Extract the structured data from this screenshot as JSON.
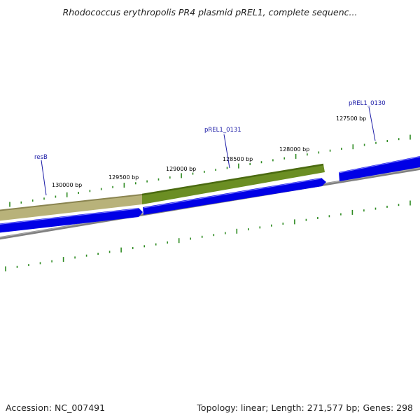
{
  "title": "Rhodococcus erythropolis PR4 plasmid pREL1, complete sequenc...",
  "footer": {
    "accession": "Accession: NC_007491",
    "summary": "Topology: linear; Length: 271,577 bp; Genes: 298"
  },
  "colors": {
    "gene_forward": "#0000e6",
    "gene_highlight": "#ffffff",
    "backbone": "#808080",
    "tick": "#2e8b22",
    "feature_resB": "#b8b27a",
    "feature_resB_edge": "#8a8450",
    "feature_other": "#6b8e23",
    "feature_other_edge": "#4a6a10",
    "label_line": "#1a1aa6"
  },
  "scale_labels": [
    "130000 bp",
    "129500 bp",
    "129000 bp",
    "128500 bp",
    "128000 bp",
    "127500 bp"
  ],
  "gene_labels": [
    "resB",
    "pREL1_0131",
    "pREL1_0130"
  ]
}
